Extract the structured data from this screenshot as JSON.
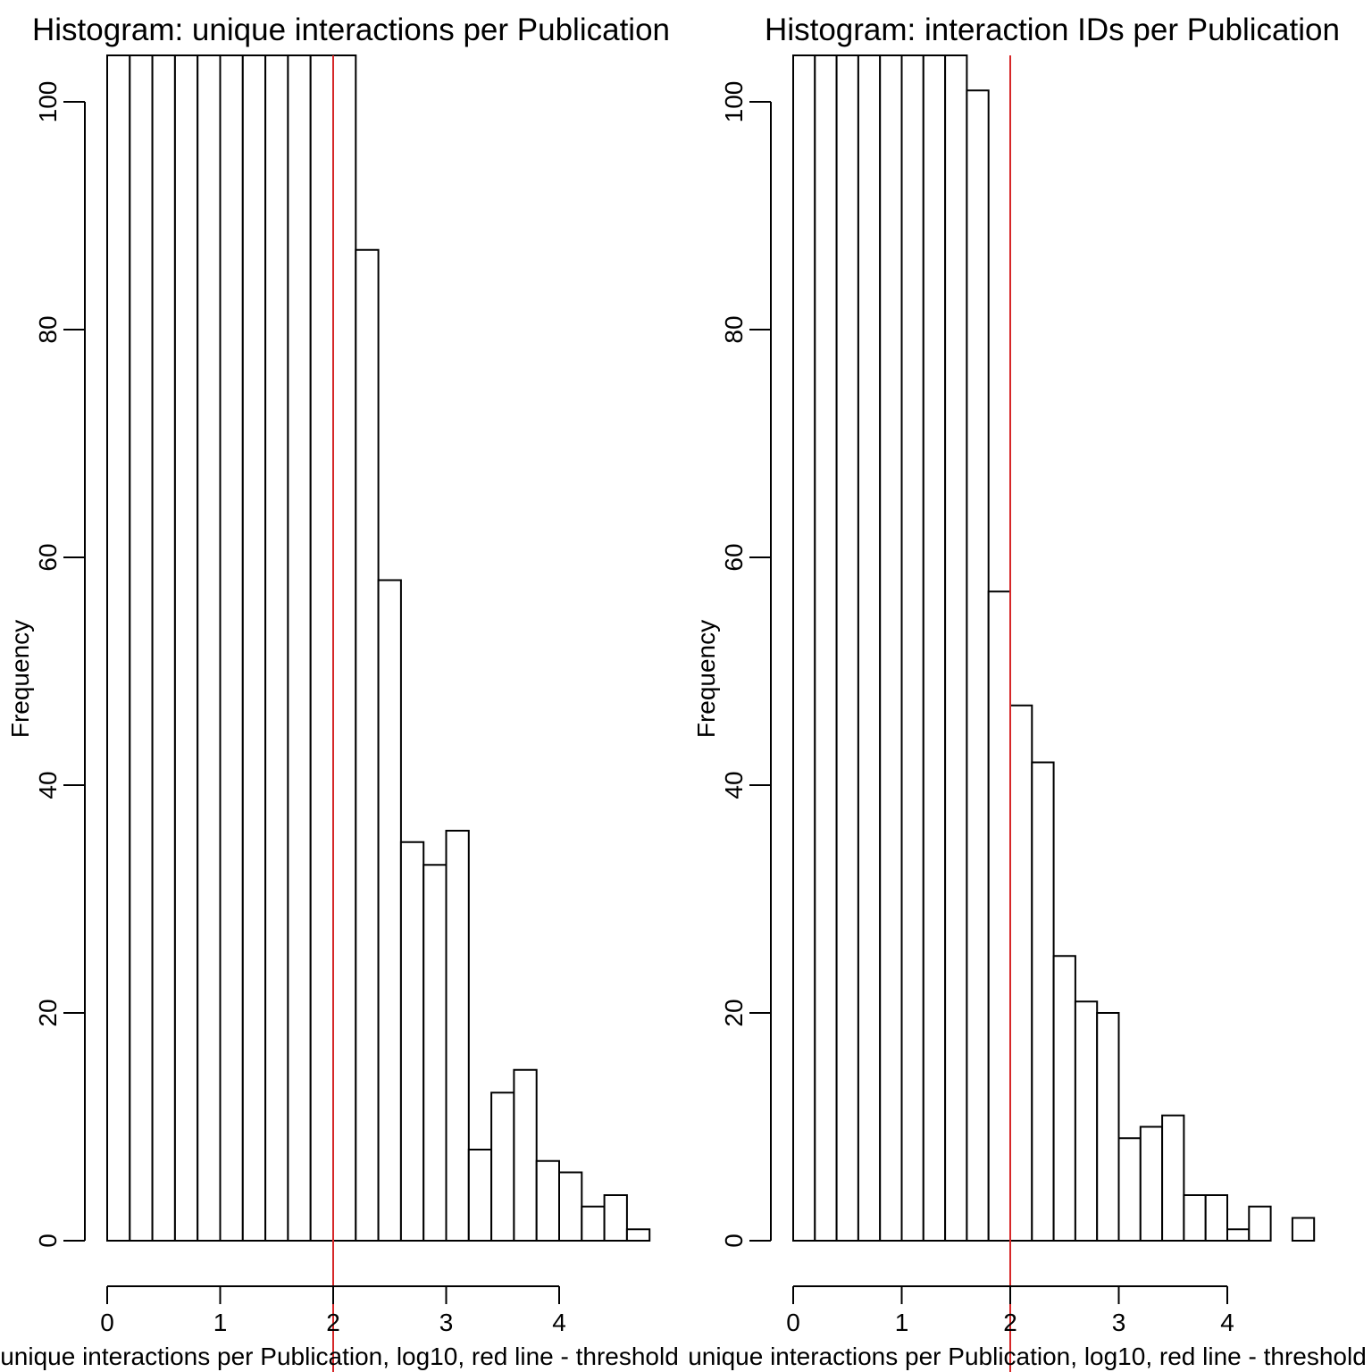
{
  "chart_data": [
    {
      "type": "bar",
      "title": "Histogram: unique interactions per Publication",
      "xlabel": "unique interactions per Publication, log10, red line - threshold",
      "ylabel": "Frequency",
      "xlim": [
        0,
        4.6
      ],
      "x_ticks": [
        0,
        1,
        2,
        3,
        4
      ],
      "y_ticks": [
        0,
        20,
        40,
        60,
        80,
        100
      ],
      "bin_width": 0.2,
      "bins_start": 0,
      "values": [
        null,
        null,
        null,
        null,
        null,
        null,
        null,
        null,
        null,
        null,
        null,
        87,
        58,
        35,
        33,
        36,
        8,
        13,
        15,
        7,
        6,
        3,
        4,
        1
      ],
      "threshold_x": 2,
      "threshold_color": "#d62728"
    },
    {
      "type": "bar",
      "title": "Histogram: interaction IDs per Publication",
      "xlabel": "unique interactions per Publication, log10, red line - threshold",
      "ylabel": "Frequency",
      "xlim": [
        0,
        4.8
      ],
      "x_ticks": [
        0,
        1,
        2,
        3,
        4
      ],
      "y_ticks": [
        0,
        20,
        40,
        60,
        80,
        100
      ],
      "bin_width": 0.2,
      "bins_start": 0,
      "values": [
        null,
        null,
        null,
        null,
        null,
        null,
        null,
        null,
        101,
        57,
        47,
        42,
        25,
        21,
        20,
        9,
        10,
        11,
        4,
        4,
        1,
        3,
        0,
        2
      ],
      "threshold_x": 2,
      "threshold_color": "#d62728"
    }
  ]
}
